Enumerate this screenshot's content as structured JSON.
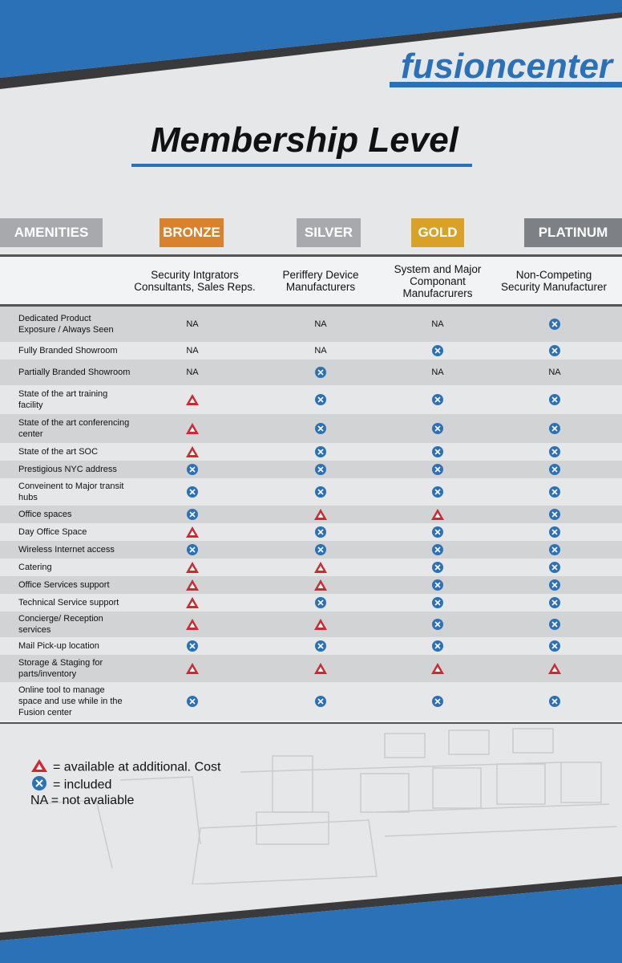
{
  "brand": "fusioncenter",
  "title": "Membership Level",
  "levels": [
    {
      "label": "AMENITIES",
      "color": "#a7a9ac"
    },
    {
      "label": "BRONZE",
      "color": "#d9822b"
    },
    {
      "label": "SILVER",
      "color": "#a7a9ac"
    },
    {
      "label": "GOLD",
      "color": "#d9a126"
    },
    {
      "label": "PLATINUM",
      "color": "#7d8084"
    }
  ],
  "descriptions": [
    "Security Intgrators Consultants, Sales Reps.",
    "Periffery Device Manufacturers",
    "System and Major Componant Manufacrurers",
    "Non-Competing Security Manufacturer"
  ],
  "icons": {
    "cost": "red-triangle-icon",
    "included": "blue-x-circle-icon",
    "cost_color": "#d22630",
    "included_color": "#2b71b8"
  },
  "rows": [
    {
      "label": "Dedicated Product Exposure / Always Seen",
      "values": [
        "NA",
        "NA",
        "NA",
        "included"
      ]
    },
    {
      "label": "Fully Branded Showroom",
      "values": [
        "NA",
        "NA",
        "included",
        "included"
      ]
    },
    {
      "label": "Partially Branded Showroom",
      "values": [
        "NA",
        "included",
        "NA",
        "NA"
      ]
    },
    {
      "label": "State of the art training facility",
      "values": [
        "cost",
        "included",
        "included",
        "included"
      ]
    },
    {
      "label": "State of the art conferencing center",
      "values": [
        "cost",
        "included",
        "included",
        "included"
      ]
    },
    {
      "label": "State of the art SOC",
      "values": [
        "cost",
        "included",
        "included",
        "included"
      ]
    },
    {
      "label": "Prestigious NYC address",
      "values": [
        "included",
        "included",
        "included",
        "included"
      ]
    },
    {
      "label": "Conveinent to Major transit hubs",
      "values": [
        "included",
        "included",
        "included",
        "included"
      ]
    },
    {
      "label": "Office spaces",
      "values": [
        "included",
        "cost",
        "cost",
        "included"
      ]
    },
    {
      "label": "Day Office Space",
      "values": [
        "cost",
        "included",
        "included",
        "included"
      ]
    },
    {
      "label": "Wireless Internet access",
      "values": [
        "included",
        "included",
        "included",
        "included"
      ]
    },
    {
      "label": "Catering",
      "values": [
        "cost",
        "cost",
        "included",
        "included"
      ]
    },
    {
      "label": "Office Services support",
      "values": [
        "cost",
        "cost",
        "included",
        "included"
      ]
    },
    {
      "label": "Technical Service support",
      "values": [
        "cost",
        "included",
        "included",
        "included"
      ]
    },
    {
      "label": "Concierge/ Reception services",
      "values": [
        "cost",
        "cost",
        "included",
        "included"
      ]
    },
    {
      "label": "Mail Pick-up location",
      "values": [
        "included",
        "included",
        "included",
        "included"
      ]
    },
    {
      "label": "Storage & Staging for parts/inventory",
      "values": [
        "cost",
        "cost",
        "cost",
        "cost"
      ]
    },
    {
      "label": "Online tool to manage space and use while in the Fusion center",
      "values": [
        "included",
        "included",
        "included",
        "included"
      ]
    }
  ],
  "legend": [
    {
      "icon": "cost",
      "text": "= available at additional. Cost"
    },
    {
      "icon": "included",
      "text": "= included"
    },
    {
      "icon": "none",
      "text": "NA = not avaliable"
    }
  ]
}
